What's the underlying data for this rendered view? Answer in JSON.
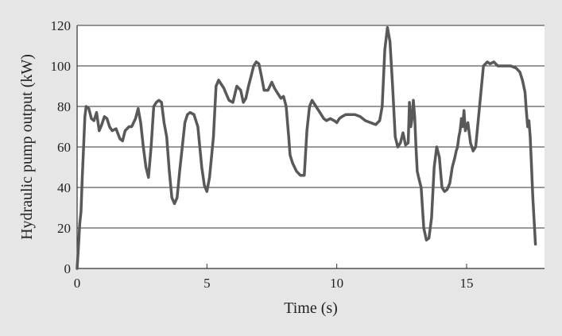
{
  "chart_data": {
    "type": "line",
    "xlabel": "Time (s)",
    "ylabel": "Hydraulic pump output (kW)",
    "xlim": [
      0,
      18
    ],
    "ylim": [
      0,
      120
    ],
    "xticks": [
      0,
      5,
      10,
      15
    ],
    "yticks": [
      0,
      20,
      40,
      60,
      80,
      100,
      120
    ],
    "grid": "horizontal",
    "legend": "none",
    "colors": {
      "line": "#595959",
      "plot_bg": "#ffffff",
      "page_bg": "#e6e6e6",
      "grid": "#333333"
    },
    "series": [
      {
        "x": [
          0,
          0.05,
          0.1,
          0.15,
          0.2,
          0.3,
          0.35,
          0.45,
          0.55,
          0.65,
          0.75,
          0.85,
          0.95,
          1.05,
          1.15,
          1.25,
          1.35,
          1.5,
          1.65,
          1.75,
          1.85,
          2.0,
          2.1,
          2.25,
          2.35,
          2.45,
          2.55,
          2.65,
          2.75,
          2.85,
          2.95,
          3.05,
          3.15,
          3.25,
          3.35,
          3.45,
          3.55,
          3.65,
          3.75,
          3.85,
          3.95,
          4.05,
          4.15,
          4.25,
          4.35,
          4.5,
          4.65,
          4.8,
          4.9,
          5.0,
          5.1,
          5.25,
          5.35,
          5.45,
          5.55,
          5.65,
          5.75,
          5.85,
          6.0,
          6.15,
          6.3,
          6.4,
          6.5,
          6.6,
          6.7,
          6.8,
          6.9,
          7.0,
          7.1,
          7.2,
          7.35,
          7.5,
          7.6,
          7.7,
          7.85,
          7.95,
          8.05,
          8.15,
          8.2,
          8.3,
          8.45,
          8.6,
          8.75,
          8.85,
          8.95,
          9.05,
          9.2,
          9.35,
          9.5,
          9.6,
          9.75,
          9.9,
          10.0,
          10.1,
          10.2,
          10.35,
          10.5,
          10.7,
          10.9,
          11.1,
          11.3,
          11.5,
          11.65,
          11.75,
          11.85,
          11.95,
          12.05,
          12.15,
          12.25,
          12.35,
          12.45,
          12.55,
          12.65,
          12.75,
          12.8,
          12.85,
          12.9,
          12.95,
          13.0,
          13.05,
          13.1,
          13.15,
          13.25,
          13.35,
          13.45,
          13.55,
          13.65,
          13.75,
          13.85,
          13.95,
          14.05,
          14.15,
          14.25,
          14.35,
          14.45,
          14.55,
          14.6,
          14.65,
          14.7,
          14.75,
          14.8,
          14.85,
          14.9,
          14.95,
          15.05,
          15.15,
          15.25,
          15.35,
          15.5,
          15.65,
          15.8,
          15.9,
          16.05,
          16.2,
          16.35,
          16.5,
          16.7,
          16.9,
          17.05,
          17.15,
          17.25,
          17.3,
          17.35,
          17.4,
          17.45,
          17.5,
          17.55,
          17.65
        ],
        "values": [
          0,
          10,
          22,
          28,
          45,
          75,
          80,
          79,
          74,
          73,
          77,
          68,
          71,
          75,
          74,
          70,
          68,
          69,
          64,
          63,
          68,
          70,
          70,
          74,
          79,
          72,
          60,
          50,
          45,
          60,
          80,
          82,
          83,
          82,
          72,
          65,
          48,
          35,
          32,
          35,
          48,
          60,
          72,
          76,
          77,
          76,
          70,
          50,
          41,
          38,
          45,
          65,
          90,
          93,
          91,
          89,
          86,
          83,
          82,
          90,
          88,
          82,
          84,
          90,
          95,
          100,
          102,
          101,
          95,
          88,
          88,
          92,
          89,
          87,
          84,
          85,
          80,
          65,
          56,
          52,
          48,
          46,
          46,
          68,
          80,
          83,
          80,
          77,
          74,
          73,
          74,
          73,
          72,
          74,
          75,
          76,
          76,
          76,
          75,
          73,
          72,
          71,
          73,
          80,
          108,
          119,
          112,
          90,
          65,
          60,
          62,
          67,
          61,
          62,
          82,
          70,
          74,
          83,
          75,
          60,
          48,
          45,
          40,
          20,
          14,
          15,
          25,
          50,
          60,
          55,
          40,
          38,
          39,
          42,
          50,
          55,
          58,
          60,
          65,
          68,
          74,
          70,
          78,
          68,
          72,
          62,
          58,
          60,
          80,
          100,
          102,
          101,
          102,
          100,
          100,
          100,
          100,
          99,
          97,
          93,
          87,
          78,
          70,
          73,
          65,
          50,
          35,
          12
        ]
      }
    ]
  }
}
